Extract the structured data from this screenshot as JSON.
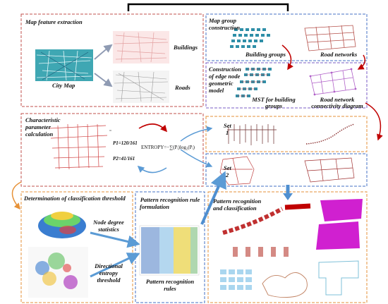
{
  "panels": {
    "feature_extraction": {
      "title": "Map feature extraction",
      "city_map": "City Map",
      "buildings": "Buildings",
      "roads": "Roads"
    },
    "group_construction": {
      "title_line1": "Map group",
      "title_line2": "construction",
      "building_groups": "Building groups",
      "road_networks": "Road networks"
    },
    "edge_node_model": {
      "title_line1": "Construction",
      "title_line2": "of edge node",
      "title_line3": "geometric",
      "title_line4": "model",
      "mst_line1": "MST for building",
      "mst_line2": "groups",
      "connectivity_line1": "Road network",
      "connectivity_line2": "connectivity diagram"
    },
    "parameter_calc": {
      "title_line1": "Characteristic",
      "title_line2": "parameter",
      "title_line3": "calculation",
      "p1": "P1=120/161",
      "p2": "P2=41/161",
      "entropy_prefix": "ENTROPY=",
      "entropy_formula": "−∑(Pᵢ)log₂(Pᵢ)"
    },
    "sets": {
      "set1_line1": "Set",
      "set1_line2": "1",
      "set2_line1": "Set",
      "set2_line2": "2"
    },
    "threshold": {
      "title": "Determination of classification threshold",
      "node_degree_line1": "Node degree",
      "node_degree_line2": "statistics",
      "directional_line1": "Directional",
      "directional_line2": "entropy",
      "directional_line3": "threshold"
    },
    "rule_formulation": {
      "title_line1": "Pattern recognition rule",
      "title_line2": "formulation",
      "rules_line1": "Pattern recognition",
      "rules_line2": "rules"
    },
    "recognition": {
      "title_line1": "Pattern recognition",
      "title_line2": "and classification"
    }
  },
  "colors": {
    "red_border": "#c0504d",
    "blue_border": "#4472c4",
    "orange_border": "#e69138",
    "arrow_red": "#c00000",
    "arrow_blue": "#5b9bd5",
    "building_teal": "#2f8fa8",
    "magenta": "#d020d0"
  }
}
